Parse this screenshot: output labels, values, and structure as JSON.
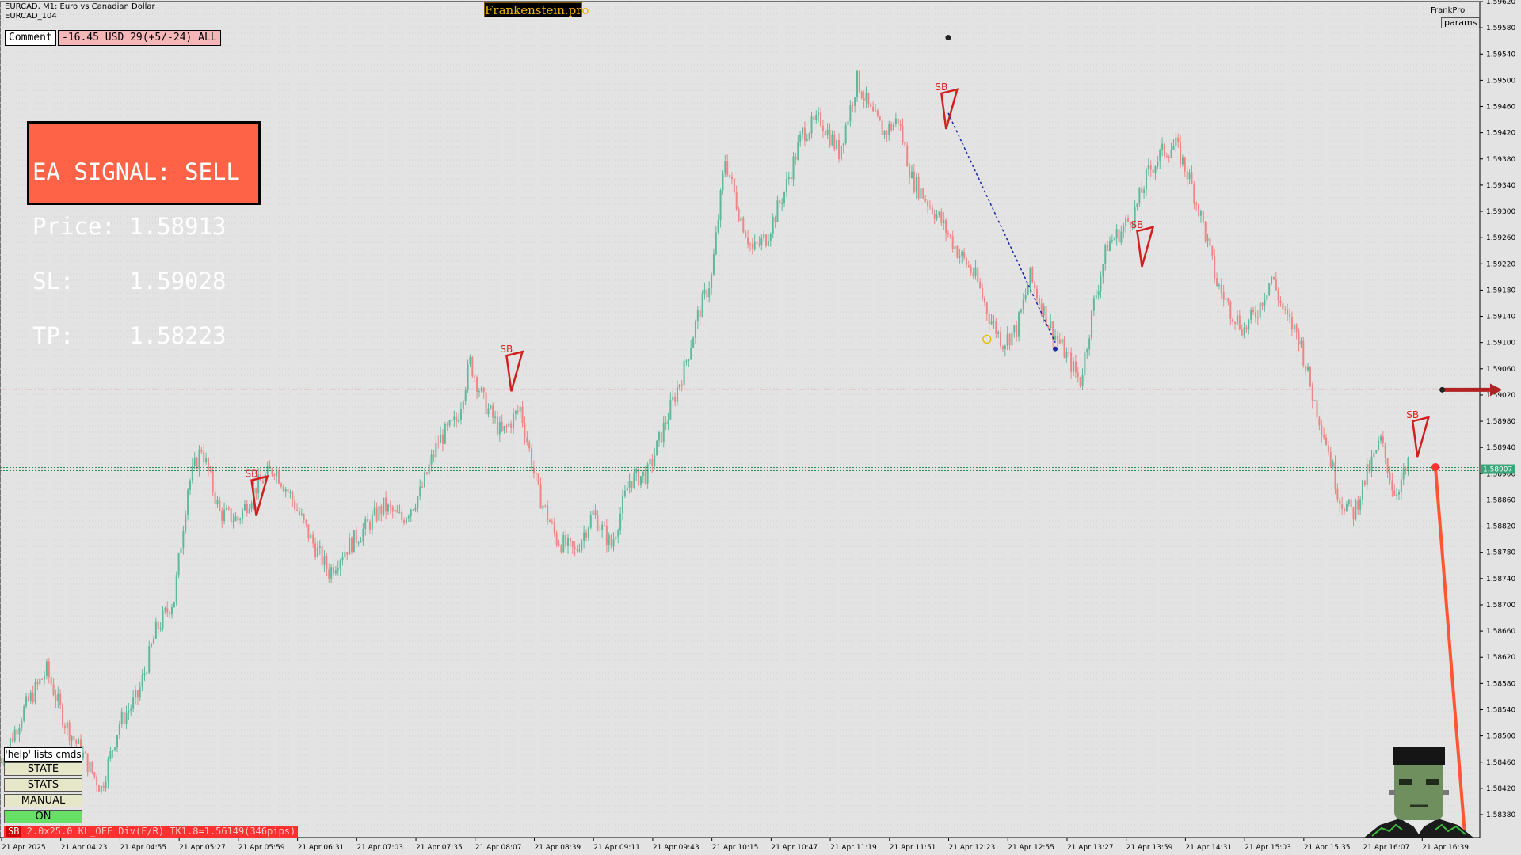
{
  "window": {
    "title": "EURCAD, M1:  Euro vs Canadian Dollar",
    "subtitle": "EURCAD_104",
    "logo": "Frankenstein.pro",
    "frankpro": "FrankPro",
    "params_label": "params"
  },
  "comment": {
    "label": "Comment",
    "value": "-16.45 USD 29(+5/-24) ALL"
  },
  "signal_panel": {
    "line1": "EA SIGNAL: SELL",
    "line2": "Price: 1.58913",
    "line3": "SL:    1.59028",
    "line4": "TP:    1.58223"
  },
  "controls": {
    "help": "'help' lists cmds",
    "state": "STATE",
    "stats": "STATS",
    "manual": "MANUAL",
    "on": "ON"
  },
  "status_bar": {
    "tag": "SB",
    "text": " 2.0x25.0 KL_OFF Div(F/R) TK1.8=1.56149(346pips)"
  },
  "colors": {
    "bull": "#5fb89c",
    "bear": "#ef8585",
    "signal_bg": "#ff6347",
    "sl_line": "#e03030",
    "price_line": "#2e8b57"
  },
  "chart_data": {
    "type": "candlestick",
    "symbol": "EURCAD",
    "timeframe": "M1",
    "ylim": [
      1.58345,
      1.5962
    ],
    "y_ticks": [
      "1.59620",
      "1.59580",
      "1.59540",
      "1.59500",
      "1.59460",
      "1.59420",
      "1.59380",
      "1.59340",
      "1.59300",
      "1.59260",
      "1.59220",
      "1.59180",
      "1.59140",
      "1.59100",
      "1.59060",
      "1.59020",
      "1.58980",
      "1.58940",
      "1.58900",
      "1.58860",
      "1.58820",
      "1.58780",
      "1.58740",
      "1.58700",
      "1.58660",
      "1.58620",
      "1.58580",
      "1.58540",
      "1.58500",
      "1.58460",
      "1.58420",
      "1.58380"
    ],
    "x_ticks": [
      "21 Apr 2025",
      "21 Apr 04:23",
      "21 Apr 04:55",
      "21 Apr 05:27",
      "21 Apr 05:59",
      "21 Apr 06:31",
      "21 Apr 07:03",
      "21 Apr 07:35",
      "21 Apr 08:07",
      "21 Apr 08:39",
      "21 Apr 09:11",
      "21 Apr 09:43",
      "21 Apr 10:15",
      "21 Apr 10:47",
      "21 Apr 11:19",
      "21 Apr 11:51",
      "21 Apr 12:23",
      "21 Apr 12:55",
      "21 Apr 13:27",
      "21 Apr 13:59",
      "21 Apr 14:31",
      "21 Apr 15:03",
      "21 Apr 15:35",
      "21 Apr 16:07",
      "21 Apr 16:39"
    ],
    "current_price": "1.58907",
    "current_price_value": 1.58907,
    "stop_line": 1.59028,
    "close_path": [
      [
        0,
        1.5846
      ],
      [
        10,
        1.5854
      ],
      [
        20,
        1.586
      ],
      [
        28,
        1.5852
      ],
      [
        36,
        1.5847
      ],
      [
        44,
        1.5842
      ],
      [
        52,
        1.5852
      ],
      [
        60,
        1.5856
      ],
      [
        68,
        1.5866
      ],
      [
        76,
        1.5871
      ],
      [
        82,
        1.5888
      ],
      [
        88,
        1.5894
      ],
      [
        96,
        1.5884
      ],
      [
        104,
        1.5883
      ],
      [
        112,
        1.5888
      ],
      [
        120,
        1.5891
      ],
      [
        128,
        1.5886
      ],
      [
        136,
        1.588
      ],
      [
        144,
        1.5875
      ],
      [
        150,
        1.5878
      ],
      [
        158,
        1.5881
      ],
      [
        168,
        1.5885
      ],
      [
        176,
        1.5883
      ],
      [
        184,
        1.5887
      ],
      [
        192,
        1.5895
      ],
      [
        200,
        1.5898
      ],
      [
        206,
        1.5907
      ],
      [
        212,
        1.5901
      ],
      [
        220,
        1.5896
      ],
      [
        228,
        1.59
      ],
      [
        236,
        1.5887
      ],
      [
        244,
        1.588
      ],
      [
        252,
        1.5878
      ],
      [
        260,
        1.5884
      ],
      [
        268,
        1.5879
      ],
      [
        276,
        1.5889
      ],
      [
        284,
        1.589
      ],
      [
        292,
        1.5898
      ],
      [
        300,
        1.5906
      ],
      [
        306,
        1.5914
      ],
      [
        312,
        1.592
      ],
      [
        318,
        1.5938
      ],
      [
        324,
        1.593
      ],
      [
        330,
        1.5924
      ],
      [
        336,
        1.5926
      ],
      [
        344,
        1.5933
      ],
      [
        352,
        1.5942
      ],
      [
        360,
        1.5944
      ],
      [
        368,
        1.5939
      ],
      [
        376,
        1.595
      ],
      [
        382,
        1.5945
      ],
      [
        388,
        1.5942
      ],
      [
        394,
        1.5944
      ],
      [
        400,
        1.5935
      ],
      [
        406,
        1.5932
      ],
      [
        412,
        1.5929
      ],
      [
        420,
        1.5924
      ],
      [
        428,
        1.592
      ],
      [
        434,
        1.5914
      ],
      [
        440,
        1.591
      ],
      [
        446,
        1.5912
      ],
      [
        452,
        1.592
      ],
      [
        460,
        1.5913
      ],
      [
        468,
        1.5908
      ],
      [
        474,
        1.5904
      ],
      [
        480,
        1.5916
      ],
      [
        486,
        1.5925
      ],
      [
        492,
        1.5927
      ],
      [
        498,
        1.593
      ],
      [
        504,
        1.5936
      ],
      [
        510,
        1.5939
      ],
      [
        516,
        1.594
      ],
      [
        522,
        1.5935
      ],
      [
        528,
        1.5928
      ],
      [
        534,
        1.5919
      ],
      [
        540,
        1.5915
      ],
      [
        546,
        1.5912
      ],
      [
        552,
        1.5915
      ],
      [
        558,
        1.592
      ],
      [
        564,
        1.5914
      ],
      [
        570,
        1.5911
      ],
      [
        576,
        1.5902
      ],
      [
        582,
        1.5895
      ],
      [
        588,
        1.5886
      ],
      [
        594,
        1.5884
      ],
      [
        600,
        1.589
      ],
      [
        606,
        1.5895
      ],
      [
        612,
        1.5887
      ],
      [
        618,
        1.5891
      ]
    ],
    "markers": [
      {
        "label": "SB",
        "i": 110,
        "y": 1.5889
      },
      {
        "label": "SB",
        "i": 222,
        "y": 1.5908
      },
      {
        "label": "SB",
        "i": 413,
        "y": 1.5948
      },
      {
        "label": "SB",
        "i": 499,
        "y": 1.5927
      },
      {
        "label": "SB",
        "i": 620,
        "y": 1.5898
      }
    ],
    "trend_arrow": {
      "from_i": 416,
      "from_y": 1.5945,
      "to_i": 463,
      "to_y": 1.591
    },
    "tp_projection": {
      "from_i": 630,
      "from_y": 1.5891,
      "to_i": 643,
      "to_y": 1.58345
    }
  }
}
